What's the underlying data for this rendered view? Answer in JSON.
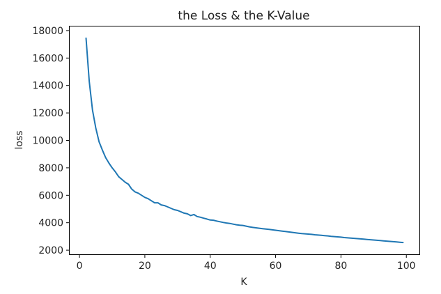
{
  "chart_data": {
    "type": "line",
    "title": "the Loss & the K-Value",
    "xlabel": "K",
    "ylabel": "loss",
    "xlim": [
      -3,
      104
    ],
    "ylim": [
      1700,
      18300
    ],
    "xticks": [
      0,
      20,
      40,
      60,
      80,
      100
    ],
    "yticks": [
      2000,
      4000,
      6000,
      8000,
      10000,
      12000,
      14000,
      16000,
      18000
    ],
    "grid": false,
    "color": "#1f77b4",
    "series": [
      {
        "x": [
          2,
          3,
          4,
          5,
          6,
          7,
          8,
          9,
          10,
          11,
          12,
          13,
          14,
          15,
          16,
          17,
          18,
          19,
          20,
          21,
          22,
          23,
          24,
          25,
          26,
          27,
          28,
          29,
          30,
          31,
          32,
          33,
          34,
          35,
          36,
          37,
          38,
          39,
          40,
          41,
          42,
          43,
          44,
          45,
          46,
          47,
          48,
          49,
          50,
          51,
          52,
          53,
          54,
          55,
          56,
          57,
          58,
          59,
          60,
          61,
          62,
          63,
          64,
          65,
          66,
          67,
          68,
          69,
          70,
          71,
          72,
          73,
          74,
          75,
          76,
          77,
          78,
          79,
          80,
          81,
          82,
          83,
          84,
          85,
          86,
          87,
          88,
          89,
          90,
          91,
          92,
          93,
          94,
          95,
          96,
          97,
          98,
          99
        ],
        "values": [
          17450,
          14300,
          12200,
          10900,
          9900,
          9300,
          8750,
          8350,
          8000,
          7700,
          7350,
          7150,
          6950,
          6800,
          6450,
          6250,
          6150,
          6000,
          5850,
          5750,
          5600,
          5450,
          5450,
          5300,
          5250,
          5150,
          5050,
          4950,
          4900,
          4800,
          4700,
          4650,
          4520,
          4600,
          4450,
          4400,
          4330,
          4270,
          4200,
          4180,
          4120,
          4070,
          4020,
          3980,
          3950,
          3900,
          3850,
          3820,
          3800,
          3750,
          3700,
          3660,
          3630,
          3600,
          3570,
          3540,
          3510,
          3480,
          3450,
          3420,
          3390,
          3360,
          3330,
          3300,
          3270,
          3240,
          3210,
          3190,
          3170,
          3150,
          3120,
          3100,
          3080,
          3060,
          3040,
          3010,
          2990,
          2970,
          2950,
          2920,
          2900,
          2880,
          2860,
          2840,
          2820,
          2800,
          2780,
          2760,
          2740,
          2720,
          2700,
          2680,
          2660,
          2640,
          2620,
          2600,
          2580,
          2560
        ]
      }
    ]
  }
}
